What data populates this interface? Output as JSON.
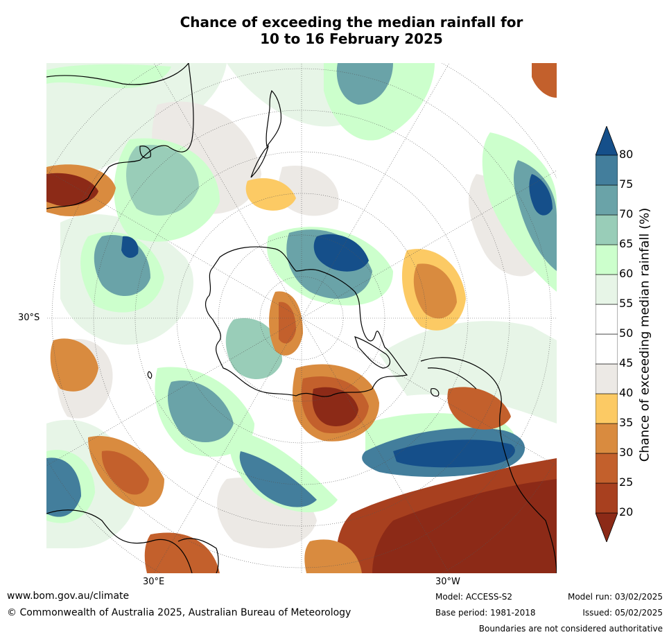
{
  "title": {
    "line1": "Chance of exceeding the median rainfall for",
    "line2": "10 to 16 February 2025"
  },
  "map": {
    "projection": "south polar stereographic",
    "lat_label": "30°S",
    "lon_labels": [
      "30°E",
      "30°W"
    ]
  },
  "colorbar": {
    "label": "Chance of exceeding median rainfall (%)",
    "ticks": [
      "20",
      "25",
      "30",
      "35",
      "40",
      "45",
      "50",
      "55",
      "60",
      "65",
      "70",
      "75",
      "80"
    ],
    "bins": [
      {
        "color": "#8c2a17"
      },
      {
        "color": "#a8401f"
      },
      {
        "color": "#c3602c"
      },
      {
        "color": "#d98b3f"
      },
      {
        "color": "#fcca64"
      },
      {
        "color": "#ece9e5"
      },
      {
        "color": "#ffffff"
      },
      {
        "color": "#ffffff"
      },
      {
        "color": "#e7f5e7"
      },
      {
        "color": "#ccffcc"
      },
      {
        "color": "#99cdb8"
      },
      {
        "color": "#6aa3a8"
      },
      {
        "color": "#437e9c"
      },
      {
        "color": "#154f8a"
      }
    ]
  },
  "footer": {
    "url": "www.bom.gov.au/climate",
    "copyright": "© Commonwealth of Australia 2025, Australian Bureau of Meteorology",
    "model": "Model: ACCESS-S2",
    "base_period": "Base period: 1981-2018",
    "model_run": "Model run: 03/02/2025",
    "issued": "Issued: 05/02/2025",
    "disclaimer": "Boundaries are not considered authoritative"
  }
}
